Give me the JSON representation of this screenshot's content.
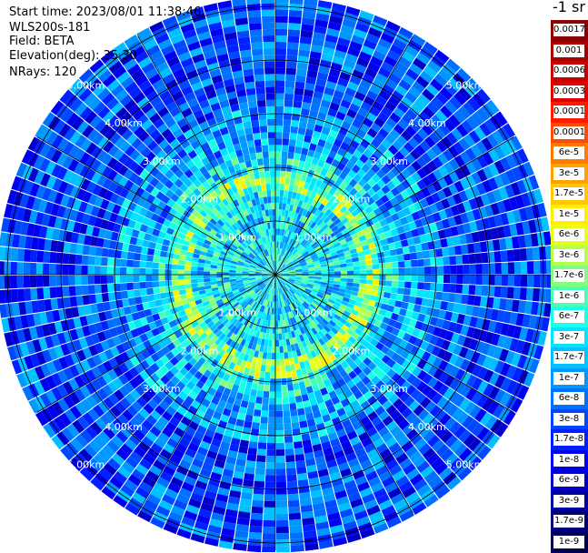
{
  "header": {
    "start_time": "Start time: 2023/08/01 11:38:46",
    "instrument": "WLS200s-181",
    "field": "Field: BETA",
    "elevation": "Elevation(deg): 35.30",
    "nrays": "NRays: 120"
  },
  "colorbar": {
    "title": "-1 sr",
    "bands": [
      {
        "label": "0.0017",
        "color": "#8b0000"
      },
      {
        "label": "0.001",
        "color": "#a80000"
      },
      {
        "label": "0.0006",
        "color": "#c80000"
      },
      {
        "label": "0.0003",
        "color": "#e00000"
      },
      {
        "label": "0.00017",
        "color": "#ff1a00"
      },
      {
        "label": "0.0001",
        "color": "#ff4a00"
      },
      {
        "label": "6e-5",
        "color": "#ff7a00"
      },
      {
        "label": "3e-5",
        "color": "#ffa000"
      },
      {
        "label": "1.7e-5",
        "color": "#ffc800"
      },
      {
        "label": "1e-5",
        "color": "#ffee00"
      },
      {
        "label": "6e-6",
        "color": "#e6ff1a"
      },
      {
        "label": "3e-6",
        "color": "#b4ff4a"
      },
      {
        "label": "1.7e-6",
        "color": "#80ff80"
      },
      {
        "label": "1e-6",
        "color": "#4affb4"
      },
      {
        "label": "6e-7",
        "color": "#1affe6"
      },
      {
        "label": "3e-7",
        "color": "#00e4ff"
      },
      {
        "label": "1.7e-7",
        "color": "#00c0ff"
      },
      {
        "label": "1e-7",
        "color": "#0098ff"
      },
      {
        "label": "6e-8",
        "color": "#0070ff"
      },
      {
        "label": "3e-8",
        "color": "#0048ff"
      },
      {
        "label": "1.7e-8",
        "color": "#0020ff"
      },
      {
        "label": "1e-8",
        "color": "#0000f0"
      },
      {
        "label": "6e-9",
        "color": "#0000c8"
      },
      {
        "label": "3e-9",
        "color": "#0000a0"
      },
      {
        "label": "1.7e-9",
        "color": "#000078"
      },
      {
        "label": "1e-9",
        "color": "#000050"
      }
    ]
  },
  "chart_data": {
    "type": "heatmap",
    "projection": "polar (PPI)",
    "rays": 120,
    "max_range_km": 5.0,
    "range_rings_km": [
      1,
      2,
      3,
      4,
      5
    ],
    "ring_labels": [
      "1.00km",
      "2.00km",
      "3.00km",
      "4.00km",
      "5.00km"
    ],
    "spokes_deg": [
      0,
      30,
      60,
      90,
      120,
      150,
      180,
      210,
      240,
      270,
      300,
      330
    ],
    "scale": "log",
    "color_range": [
      1e-09,
      0.0017
    ],
    "regions": [
      {
        "range_km": [
          0.0,
          1.1
        ],
        "typical_value": 3e-07
      },
      {
        "range_km": [
          1.1,
          2.3
        ],
        "typical_value": 3e-07
      },
      {
        "range_km": [
          1.6,
          2.0
        ],
        "typical_value": 1.7e-06,
        "note": "bright ring"
      },
      {
        "range_km": [
          2.3,
          3.2
        ],
        "typical_value": 1e-07
      },
      {
        "range_km": [
          3.2,
          5.1
        ],
        "typical_value": 3e-08
      }
    ]
  }
}
